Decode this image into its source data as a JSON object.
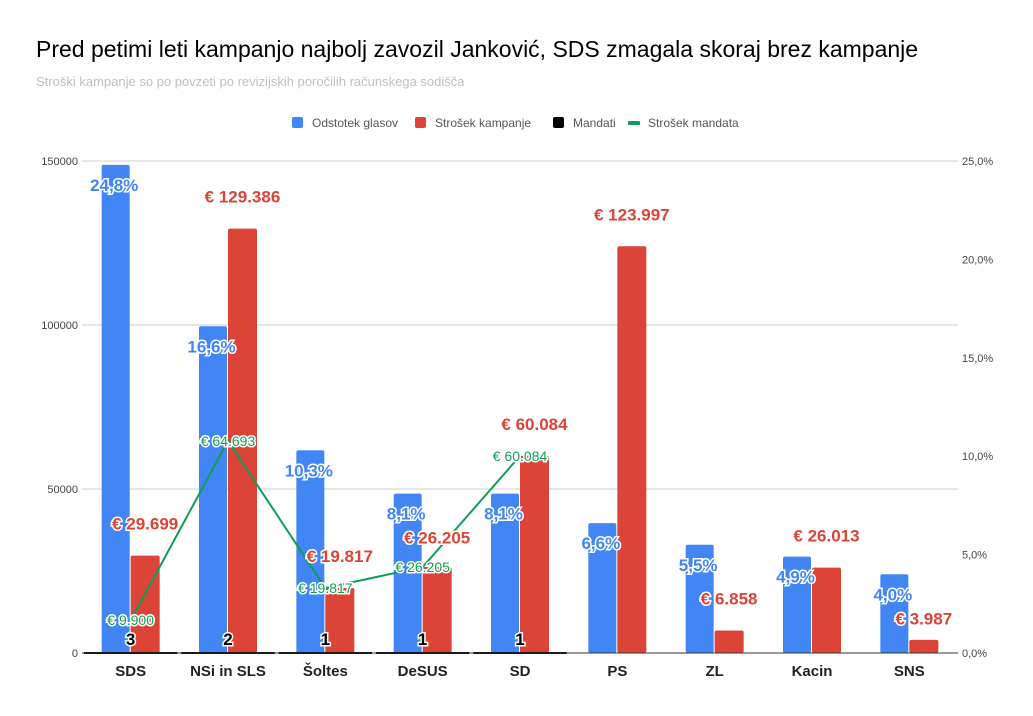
{
  "chart_data": {
    "type": "bar",
    "title": "Pred petimi leti kampanjo najbolj zavozil Janković, SDS zmagala skoraj brez kampanje",
    "subtitle": "Stroški kampanje so po povzeti po revizijskih poročilih računskega sodišča",
    "categories": [
      "SDS",
      "NSi in SLS",
      "Šoltes",
      "DeSUS",
      "SD",
      "PS",
      "ZL",
      "Kacin",
      "SNS"
    ],
    "left_axis": {
      "ylim": [
        0,
        150000
      ],
      "ticks": [
        "0",
        "50000",
        "100000",
        "150000"
      ],
      "tick_values": [
        0,
        50000,
        100000,
        150000
      ]
    },
    "right_axis": {
      "ylim": [
        0,
        25
      ],
      "ticks": [
        "0,0%",
        "5,0%",
        "10,0%",
        "15,0%",
        "20,0%",
        "25,0%"
      ],
      "tick_values": [
        0,
        5,
        10,
        15,
        20,
        25
      ]
    },
    "legend_position": "top",
    "colors": {
      "blue": "#4285f4",
      "red": "#db4437",
      "black": "#000000",
      "green": "#0f9d58"
    },
    "series": [
      {
        "name": "Odstotek glasov",
        "type": "bar",
        "axis": "right",
        "color": "#4285f4",
        "values": [
          24.8,
          16.6,
          10.3,
          8.1,
          8.1,
          6.6,
          5.5,
          4.9,
          4.0
        ],
        "labels": [
          "24,8%",
          "16,6%",
          "10,3%",
          "8,1%",
          "8,1%",
          "6,6%",
          "5,5%",
          "4,9%",
          "4,0%"
        ]
      },
      {
        "name": "Strošek kampanje",
        "type": "bar",
        "axis": "left",
        "color": "#db4437",
        "values": [
          29699,
          129386,
          19817,
          26205,
          60084,
          123997,
          6858,
          26013,
          3987
        ],
        "labels": [
          "€ 29.699",
          "€ 129.386",
          "€ 19.817",
          "€ 26.205",
          "€ 60.084",
          "€ 123.997",
          "€ 6.858",
          "€ 26.013",
          "€ 3.987"
        ]
      },
      {
        "name": "Mandati",
        "type": "bar",
        "axis": "left",
        "color": "#000000",
        "values": [
          3,
          2,
          1,
          1,
          1,
          null,
          null,
          null,
          null
        ],
        "labels": [
          "3",
          "2",
          "1",
          "1",
          "1",
          "",
          "",
          "",
          ""
        ]
      },
      {
        "name": "Strošek mandata",
        "type": "line",
        "axis": "left",
        "color": "#0f9d58",
        "values": [
          9900,
          64693,
          19817,
          26205,
          60084,
          null,
          null,
          null,
          null
        ],
        "labels": [
          "€ 9.900",
          "€ 64.693",
          "€ 19.817",
          "€ 26.205",
          "€ 60.084",
          "",
          "",
          "",
          ""
        ]
      }
    ]
  }
}
